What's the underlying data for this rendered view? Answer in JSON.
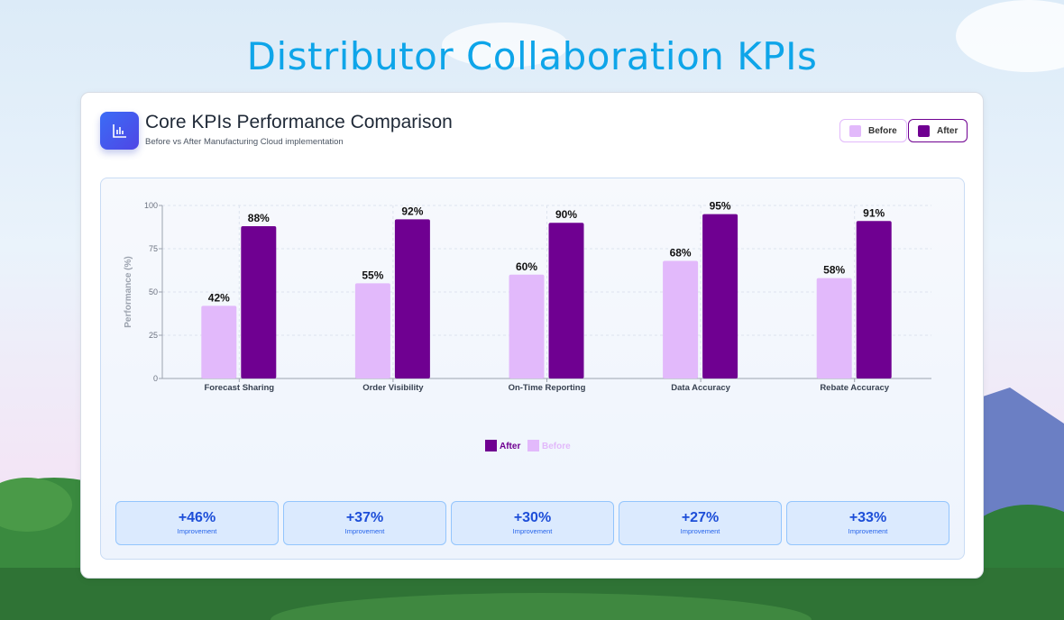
{
  "page_title": "Distributor Collaboration KPIs",
  "card": {
    "title": "Core KPIs Performance Comparison",
    "subtitle": "Before vs After Manufacturing Cloud implementation",
    "icon": "bar-chart-icon"
  },
  "legend_buttons": {
    "before": "Before",
    "after": "After"
  },
  "colors": {
    "before": "#e2b9fb",
    "after": "#6f0091",
    "accent": "#0ea5e9"
  },
  "chart_data": {
    "type": "bar",
    "title": "",
    "ylabel": "Performance (%)",
    "xlabel": "",
    "ylim": [
      0,
      100
    ],
    "yticks": [
      0,
      25,
      50,
      75,
      100
    ],
    "grid": true,
    "legend_placement": "bottom",
    "categories": [
      "Forecast Sharing",
      "Order Visibility",
      "On-Time Reporting",
      "Data Accuracy",
      "Rebate Accuracy"
    ],
    "series": [
      {
        "name": "Before",
        "values": [
          42,
          55,
          60,
          68,
          58
        ]
      },
      {
        "name": "After",
        "values": [
          88,
          92,
          90,
          95,
          91
        ]
      }
    ]
  },
  "improvements": [
    {
      "value": "+46%",
      "label": "Improvement"
    },
    {
      "value": "+37%",
      "label": "Improvement"
    },
    {
      "value": "+30%",
      "label": "Improvement"
    },
    {
      "value": "+27%",
      "label": "Improvement"
    },
    {
      "value": "+33%",
      "label": "Improvement"
    }
  ]
}
